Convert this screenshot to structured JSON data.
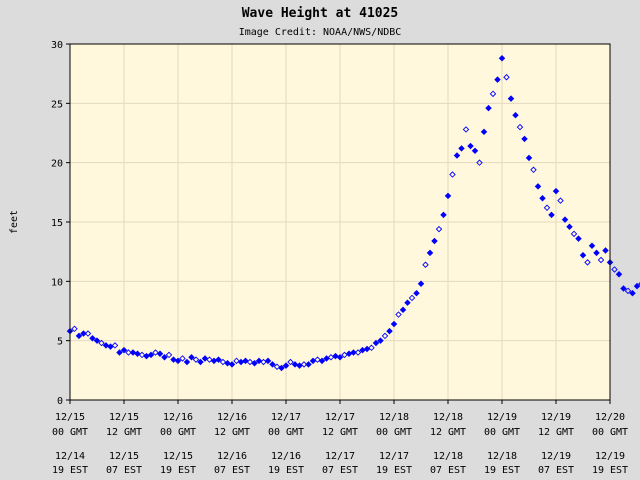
{
  "chart_data": {
    "type": "scatter",
    "title": "Wave Height at 41025",
    "subtitle": "Image Credit: NOAA/NWS/NDBC",
    "xlabel": "",
    "ylabel": "feet",
    "ylim": [
      0,
      30
    ],
    "yticks": [
      0,
      5,
      10,
      15,
      20,
      25,
      30
    ],
    "xlim": [
      "2014-12-15 00:00 GMT",
      "2014-12-20 00:00 GMT"
    ],
    "grid": true,
    "background_color": "#fff8dc",
    "grid_color": "#e6d9c0",
    "point_color": "#0000ff",
    "xticks": [
      {
        "gmt_date": "12/15",
        "gmt_time": "00 GMT",
        "est_date": "12/14",
        "est_time": "19 EST"
      },
      {
        "gmt_date": "12/15",
        "gmt_time": "12 GMT",
        "est_date": "12/15",
        "est_time": "07 EST"
      },
      {
        "gmt_date": "12/16",
        "gmt_time": "00 GMT",
        "est_date": "12/15",
        "est_time": "19 EST"
      },
      {
        "gmt_date": "12/16",
        "gmt_time": "12 GMT",
        "est_date": "12/16",
        "est_time": "07 EST"
      },
      {
        "gmt_date": "12/17",
        "gmt_time": "00 GMT",
        "est_date": "12/16",
        "est_time": "19 EST"
      },
      {
        "gmt_date": "12/17",
        "gmt_time": "12 GMT",
        "est_date": "12/17",
        "est_time": "07 EST"
      },
      {
        "gmt_date": "12/18",
        "gmt_time": "00 GMT",
        "est_date": "12/17",
        "est_time": "19 EST"
      },
      {
        "gmt_date": "12/18",
        "gmt_time": "12 GMT",
        "est_date": "12/18",
        "est_time": "07 EST"
      },
      {
        "gmt_date": "12/19",
        "gmt_time": "00 GMT",
        "est_date": "12/18",
        "est_time": "19 EST"
      },
      {
        "gmt_date": "12/19",
        "gmt_time": "12 GMT",
        "est_date": "12/19",
        "est_time": "07 EST"
      },
      {
        "gmt_date": "12/20",
        "gmt_time": "00 GMT",
        "est_date": "12/19",
        "est_time": "19 EST"
      }
    ],
    "series": [
      {
        "x_unit": "hours after 12/15 00 GMT",
        "x": [
          0,
          1,
          2,
          3,
          4,
          5,
          6,
          7,
          8,
          9,
          10,
          11,
          12,
          13,
          14,
          15,
          16,
          17,
          18,
          19,
          20,
          21,
          22,
          23,
          24,
          25,
          26,
          27,
          28,
          29,
          30,
          31,
          32,
          33,
          34,
          35,
          36,
          37,
          38,
          39,
          40,
          41,
          42,
          43,
          44,
          45,
          46,
          47,
          48,
          49,
          50,
          51,
          52,
          53,
          54,
          55,
          56,
          57,
          58,
          59,
          60,
          61,
          62,
          63,
          64,
          65,
          66,
          67,
          68,
          69,
          70,
          71,
          72,
          73,
          74,
          75,
          76,
          77,
          78,
          79,
          80,
          81,
          82,
          83,
          84,
          85,
          86,
          87,
          88,
          89,
          90,
          91,
          92,
          93,
          94,
          95,
          96,
          97,
          98,
          99,
          100,
          101,
          102,
          103,
          104,
          105,
          106,
          107,
          108,
          109,
          110,
          111,
          112,
          113,
          114,
          115,
          116,
          117,
          118,
          119,
          120,
          121,
          122,
          123,
          124,
          125,
          126,
          127
        ],
        "y": [
          5.8,
          6.0,
          5.4,
          5.6,
          5.6,
          5.2,
          5.0,
          4.8,
          4.6,
          4.5,
          4.6,
          4.0,
          4.2,
          4.0,
          4.0,
          3.9,
          3.8,
          3.7,
          3.8,
          4.0,
          3.9,
          3.6,
          3.8,
          3.4,
          3.3,
          3.5,
          3.2,
          3.6,
          3.4,
          3.2,
          3.5,
          3.4,
          3.3,
          3.4,
          3.2,
          3.1,
          3.0,
          3.3,
          3.2,
          3.3,
          3.2,
          3.1,
          3.3,
          3.2,
          3.3,
          3.0,
          2.8,
          2.7,
          2.9,
          3.2,
          3.0,
          2.9,
          3.0,
          3.0,
          3.3,
          3.4,
          3.3,
          3.5,
          3.6,
          3.7,
          3.6,
          3.8,
          3.9,
          4.0,
          4.0,
          4.2,
          4.3,
          4.4,
          4.8,
          5.0,
          5.4,
          5.8,
          6.4,
          7.2,
          7.6,
          8.2,
          8.6,
          9.0,
          9.8,
          11.4,
          12.4,
          13.4,
          14.4,
          15.6,
          17.2,
          19.0,
          20.6,
          21.2,
          22.8,
          21.4,
          21.0,
          20.0,
          22.6,
          24.6,
          25.8,
          27.0,
          28.8,
          27.2,
          25.4,
          24.0,
          23.0,
          22.0,
          20.4,
          19.4,
          18.0,
          17.0,
          16.2,
          15.6,
          17.6,
          16.8,
          15.2,
          14.6,
          14.0,
          13.6,
          12.2,
          11.6,
          13.0,
          12.4,
          11.8,
          12.6,
          11.6,
          11.0,
          10.6,
          9.4,
          9.2,
          9.0,
          9.6,
          9.8
        ],
        "values_note": ""
      }
    ]
  }
}
